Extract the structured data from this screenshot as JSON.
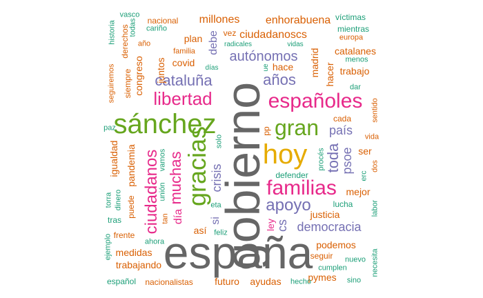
{
  "colors": {
    "gray": "#666666",
    "pink": "#e7298a",
    "green": "#66a61e",
    "purple": "#7570b3",
    "orange": "#d95f02",
    "teal": "#1b9e77",
    "gold": "#e6ab02"
  },
  "words": [
    {
      "text": "gobierno",
      "color": "gray"
    },
    {
      "text": "españa",
      "color": "gray"
    },
    {
      "text": "hoy",
      "color": "gold"
    },
    {
      "text": "sánchez",
      "color": "green"
    },
    {
      "text": "españoles",
      "color": "pink"
    },
    {
      "text": "familias",
      "color": "pink"
    },
    {
      "text": "gracias",
      "color": "green"
    },
    {
      "text": "gran",
      "color": "green"
    },
    {
      "text": "libertad",
      "color": "pink"
    },
    {
      "text": "ciudadanos",
      "color": "pink"
    },
    {
      "text": "apoyo",
      "color": "purple"
    },
    {
      "text": "cataluña",
      "color": "purple"
    },
    {
      "text": "muchas",
      "color": "pink"
    },
    {
      "text": "crisis",
      "color": "purple"
    },
    {
      "text": "autónomos",
      "color": "purple"
    },
    {
      "text": "años",
      "color": "purple"
    },
    {
      "text": "toda",
      "color": "purple"
    },
    {
      "text": "psoe",
      "color": "purple"
    },
    {
      "text": "país",
      "color": "purple"
    },
    {
      "text": "democracia",
      "color": "purple"
    },
    {
      "text": "cs",
      "color": "purple"
    },
    {
      "text": "enhorabuena",
      "color": "orange"
    },
    {
      "text": "millones",
      "color": "orange"
    },
    {
      "text": "ciudadanoscs",
      "color": "orange"
    },
    {
      "text": "debe",
      "color": "purple"
    },
    {
      "text": "día",
      "color": "pink"
    },
    {
      "text": "si",
      "color": "purple"
    },
    {
      "text": "así",
      "color": "orange"
    },
    {
      "text": "pandemia",
      "color": "orange"
    },
    {
      "text": "igualdad",
      "color": "orange"
    },
    {
      "text": "congreso",
      "color": "orange"
    },
    {
      "text": "juntos",
      "color": "orange"
    },
    {
      "text": "covid",
      "color": "orange"
    },
    {
      "text": "plan",
      "color": "orange"
    },
    {
      "text": "nacional",
      "color": "orange"
    },
    {
      "text": "vez",
      "color": "orange"
    },
    {
      "text": "madrid",
      "color": "orange"
    },
    {
      "text": "hacer",
      "color": "orange"
    },
    {
      "text": "hace",
      "color": "orange"
    },
    {
      "text": "trabajo",
      "color": "orange"
    },
    {
      "text": "catalanes",
      "color": "orange"
    },
    {
      "text": "víctimas",
      "color": "teal"
    },
    {
      "text": "mientras",
      "color": "teal"
    },
    {
      "text": "europa",
      "color": "orange"
    },
    {
      "text": "menos",
      "color": "teal"
    },
    {
      "text": "dar",
      "color": "teal"
    },
    {
      "text": "cada",
      "color": "orange"
    },
    {
      "text": "sentido",
      "color": "orange"
    },
    {
      "text": "vida",
      "color": "orange"
    },
    {
      "text": "ser",
      "color": "orange"
    },
    {
      "text": "dos",
      "color": "orange"
    },
    {
      "text": "erc",
      "color": "teal"
    },
    {
      "text": "mejor",
      "color": "orange"
    },
    {
      "text": "lucha",
      "color": "teal"
    },
    {
      "text": "labor",
      "color": "teal"
    },
    {
      "text": "justicia",
      "color": "orange"
    },
    {
      "text": "podemos",
      "color": "orange"
    },
    {
      "text": "seguir",
      "color": "orange"
    },
    {
      "text": "nuevo",
      "color": "teal"
    },
    {
      "text": "cumplen",
      "color": "teal"
    },
    {
      "text": "pymes",
      "color": "orange"
    },
    {
      "text": "sino",
      "color": "teal"
    },
    {
      "text": "necesita",
      "color": "teal"
    },
    {
      "text": "hecho",
      "color": "teal"
    },
    {
      "text": "ayudas",
      "color": "orange"
    },
    {
      "text": "futuro",
      "color": "orange"
    },
    {
      "text": "nacionalistas",
      "color": "orange"
    },
    {
      "text": "español",
      "color": "teal"
    },
    {
      "text": "trabajando",
      "color": "orange"
    },
    {
      "text": "medidas",
      "color": "orange"
    },
    {
      "text": "frente",
      "color": "orange"
    },
    {
      "text": "ahora",
      "color": "teal"
    },
    {
      "text": "ejemplo",
      "color": "teal"
    },
    {
      "text": "tras",
      "color": "teal"
    },
    {
      "text": "puede",
      "color": "orange"
    },
    {
      "text": "torra",
      "color": "teal"
    },
    {
      "text": "dinero",
      "color": "teal"
    },
    {
      "text": "unión",
      "color": "teal"
    },
    {
      "text": "tan",
      "color": "orange"
    },
    {
      "text": "eta",
      "color": "teal"
    },
    {
      "text": "feliz",
      "color": "teal"
    },
    {
      "text": "vamos",
      "color": "teal"
    },
    {
      "text": "solo",
      "color": "teal"
    },
    {
      "text": "pp",
      "color": "orange"
    },
    {
      "text": "procés",
      "color": "teal"
    },
    {
      "text": "defender",
      "color": "teal"
    },
    {
      "text": "ley",
      "color": "pink"
    },
    {
      "text": "paz",
      "color": "teal"
    },
    {
      "text": "seguiremos",
      "color": "orange"
    },
    {
      "text": "siempre",
      "color": "orange"
    },
    {
      "text": "derechos",
      "color": "orange"
    },
    {
      "text": "historia",
      "color": "teal"
    },
    {
      "text": "vasco",
      "color": "teal"
    },
    {
      "text": "todas",
      "color": "teal"
    },
    {
      "text": "cariño",
      "color": "teal"
    },
    {
      "text": "año",
      "color": "orange"
    },
    {
      "text": "familia",
      "color": "orange"
    },
    {
      "text": "radicales",
      "color": "teal"
    },
    {
      "text": "vidas",
      "color": "teal"
    },
    {
      "text": "días",
      "color": "teal"
    },
    {
      "text": "ue",
      "color": "teal"
    }
  ]
}
